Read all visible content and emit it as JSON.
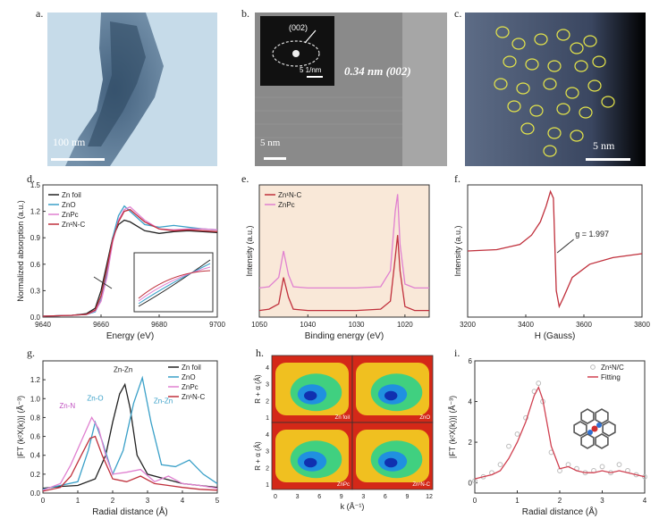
{
  "panels": {
    "a": {
      "label": "a.",
      "scalebar": "100 nm"
    },
    "b": {
      "label": "b.",
      "inset_label": "(002)",
      "inset_scale": "5 1/nm",
      "d_spacing": "0.34 nm (002)",
      "scalebar": "5 nm"
    },
    "c": {
      "label": "c.",
      "scalebar": "5 nm"
    },
    "d": {
      "label": "d."
    },
    "e": {
      "label": "e."
    },
    "f": {
      "label": "f."
    },
    "g": {
      "label": "g."
    },
    "h": {
      "label": "h."
    },
    "i": {
      "label": "i."
    }
  },
  "chart_data": [
    {
      "id": "d",
      "type": "line",
      "xlabel": "Energy (eV)",
      "ylabel": "Normalized absorption (a.u.)",
      "xlim": [
        9640,
        9700
      ],
      "ylim": [
        0,
        1.5
      ],
      "xticks": [
        "9640",
        "9660",
        "9680",
        "9700"
      ],
      "yticks": [
        "0.0",
        "0.3",
        "0.6",
        "0.9",
        "1.2",
        "1.5"
      ],
      "legend": "top-left",
      "series": [
        {
          "name": "Zn foil",
          "color": "#222222",
          "x": [
            9640,
            9650,
            9655,
            9658,
            9660,
            9662,
            9664,
            9666,
            9668,
            9670,
            9675,
            9680,
            9685,
            9690,
            9695,
            9700
          ],
          "y": [
            0.01,
            0.02,
            0.04,
            0.1,
            0.3,
            0.6,
            0.9,
            1.05,
            1.1,
            1.08,
            0.98,
            0.95,
            0.97,
            0.98,
            0.97,
            0.96
          ]
        },
        {
          "name": "ZnO",
          "color": "#3aa0c8",
          "x": [
            9640,
            9650,
            9655,
            9658,
            9660,
            9662,
            9664,
            9666,
            9668,
            9670,
            9675,
            9680,
            9685,
            9690,
            9695,
            9700
          ],
          "y": [
            0.01,
            0.02,
            0.03,
            0.06,
            0.2,
            0.5,
            0.9,
            1.15,
            1.26,
            1.2,
            1.05,
            1.02,
            1.04,
            1.02,
            1.0,
            0.99
          ]
        },
        {
          "name": "ZnPc",
          "color": "#e080d0",
          "x": [
            9640,
            9650,
            9655,
            9658,
            9660,
            9662,
            9664,
            9666,
            9668,
            9670,
            9675,
            9680,
            9685,
            9690,
            9695,
            9700
          ],
          "y": [
            0.01,
            0.02,
            0.03,
            0.07,
            0.18,
            0.45,
            0.85,
            1.1,
            1.22,
            1.25,
            1.1,
            1.0,
            0.99,
            1.0,
            1.0,
            0.99
          ]
        },
        {
          "name": "Zn¹N-C",
          "color": "#c0303c",
          "x": [
            9640,
            9650,
            9655,
            9658,
            9660,
            9662,
            9664,
            9666,
            9668,
            9670,
            9675,
            9680,
            9685,
            9690,
            9695,
            9700
          ],
          "y": [
            0.01,
            0.02,
            0.03,
            0.08,
            0.24,
            0.55,
            0.88,
            1.08,
            1.2,
            1.22,
            1.08,
            1.0,
            0.98,
            0.99,
            0.98,
            0.97
          ]
        }
      ]
    },
    {
      "id": "e",
      "type": "line",
      "xlabel": "Binding energy (eV)",
      "ylabel": "Intensity (a.u.)",
      "xlim": [
        1050,
        1015
      ],
      "ylim": [
        0,
        1
      ],
      "xticks": [
        "1050",
        "1040",
        "1030",
        "1020"
      ],
      "legend": "top-left",
      "series": [
        {
          "name": "Zn¹N-C",
          "color": "#c0303c",
          "x": [
            1050,
            1048,
            1046,
            1045,
            1044,
            1043,
            1040,
            1035,
            1030,
            1025,
            1023,
            1022,
            1021.5,
            1021,
            1020,
            1018,
            1015
          ],
          "y": [
            0.05,
            0.06,
            0.1,
            0.3,
            0.15,
            0.06,
            0.05,
            0.05,
            0.05,
            0.06,
            0.12,
            0.45,
            0.62,
            0.35,
            0.08,
            0.05,
            0.05
          ]
        },
        {
          "name": "ZnPc",
          "color": "#e080d0",
          "x": [
            1050,
            1048,
            1046,
            1045,
            1044,
            1043,
            1040,
            1035,
            1030,
            1025,
            1023,
            1022,
            1021.5,
            1021,
            1020,
            1018,
            1015
          ],
          "y": [
            0.22,
            0.23,
            0.3,
            0.5,
            0.32,
            0.23,
            0.22,
            0.22,
            0.22,
            0.23,
            0.35,
            0.8,
            0.93,
            0.55,
            0.25,
            0.22,
            0.22
          ]
        }
      ]
    },
    {
      "id": "f",
      "type": "line",
      "xlabel": "H (Gauss)",
      "ylabel": "Intensity (a.u.)",
      "xlim": [
        3200,
        3800
      ],
      "xticks": [
        "3200",
        "3400",
        "3600",
        "3800"
      ],
      "annotation": "g = 1.997",
      "series": [
        {
          "color": "#c0303c",
          "x": [
            3200,
            3300,
            3380,
            3420,
            3450,
            3470,
            3485,
            3495,
            3500,
            3505,
            3515,
            3530,
            3560,
            3620,
            3700,
            3800
          ],
          "y": [
            0.5,
            0.51,
            0.55,
            0.62,
            0.72,
            0.84,
            0.95,
            0.9,
            0.55,
            0.2,
            0.08,
            0.15,
            0.3,
            0.4,
            0.45,
            0.48
          ]
        }
      ]
    },
    {
      "id": "g",
      "type": "line",
      "xlabel": "Radial distance (Å)",
      "ylabel": "|FT (k²X(k))| (Å⁻³)",
      "xlim": [
        0,
        5
      ],
      "ylim": [
        0,
        1.4
      ],
      "xticks": [
        "0",
        "1",
        "2",
        "3",
        "4",
        "5"
      ],
      "yticks": [
        "0.0",
        "0.2",
        "0.4",
        "0.6",
        "0.8",
        "1.0",
        "1.2"
      ],
      "legend": "top-right",
      "annotations": [
        "Zn-Zn",
        "Zn-O",
        "Zn-N",
        "Zn-Zn"
      ],
      "series": [
        {
          "name": "Zn foil",
          "color": "#222222",
          "x": [
            0,
            0.5,
            1.0,
            1.5,
            1.8,
            2.0,
            2.2,
            2.35,
            2.5,
            2.7,
            3.0,
            3.5,
            4.0,
            4.5,
            5.0
          ],
          "y": [
            0.05,
            0.07,
            0.08,
            0.15,
            0.4,
            0.75,
            1.05,
            1.15,
            0.9,
            0.4,
            0.2,
            0.15,
            0.1,
            0.08,
            0.06
          ]
        },
        {
          "name": "ZnO",
          "color": "#3aa0c8",
          "x": [
            0,
            0.5,
            1.0,
            1.3,
            1.5,
            1.7,
            2.0,
            2.3,
            2.6,
            2.85,
            3.1,
            3.4,
            3.8,
            4.2,
            4.6,
            5.0
          ],
          "y": [
            0.04,
            0.08,
            0.12,
            0.45,
            0.75,
            0.55,
            0.2,
            0.45,
            0.95,
            1.22,
            0.75,
            0.3,
            0.28,
            0.35,
            0.2,
            0.1
          ]
        },
        {
          "name": "ZnPc",
          "color": "#e080d0",
          "x": [
            0,
            0.5,
            0.8,
            1.1,
            1.4,
            1.6,
            1.8,
            2.0,
            2.4,
            2.8,
            3.2,
            3.6,
            4.0,
            4.5,
            5.0
          ],
          "y": [
            0.03,
            0.1,
            0.3,
            0.55,
            0.8,
            0.68,
            0.4,
            0.2,
            0.22,
            0.25,
            0.12,
            0.18,
            0.1,
            0.08,
            0.05
          ]
        },
        {
          "name": "Zn¹N-C",
          "color": "#c0303c",
          "x": [
            0,
            0.5,
            0.8,
            1.1,
            1.35,
            1.5,
            1.7,
            2.0,
            2.4,
            2.8,
            3.2,
            3.6,
            4.0,
            4.5,
            5.0
          ],
          "y": [
            0.02,
            0.06,
            0.18,
            0.4,
            0.58,
            0.6,
            0.4,
            0.15,
            0.12,
            0.18,
            0.1,
            0.08,
            0.06,
            0.04,
            0.03
          ]
        }
      ]
    },
    {
      "id": "h",
      "type": "heatmap",
      "xlabel": "k (Å⁻¹)",
      "ylabel": "R + α (Å)",
      "subpanels": [
        "Zn foil",
        "ZnO",
        "ZnPc",
        "Zn¹N-C"
      ],
      "xticks": [
        "0",
        "3",
        "6",
        "9",
        "3",
        "6",
        "9",
        "12"
      ],
      "yticks": [
        "1",
        "2",
        "3",
        "4"
      ]
    },
    {
      "id": "i",
      "type": "line",
      "xlabel": "Radial distance (Å)",
      "ylabel": "|FT (k²X(k))| (Å⁻³)",
      "xlim": [
        0,
        4
      ],
      "ylim": [
        -0.5,
        6
      ],
      "xticks": [
        "0",
        "1",
        "2",
        "3",
        "4"
      ],
      "yticks": [
        "0",
        "2",
        "4",
        "6"
      ],
      "legend": "top-right",
      "series": [
        {
          "name": "Zn¹N/C",
          "color": "#bbbbbb",
          "style": "markers",
          "x": [
            0,
            0.2,
            0.4,
            0.6,
            0.8,
            1.0,
            1.2,
            1.4,
            1.5,
            1.6,
            1.8,
            2.0,
            2.2,
            2.4,
            2.6,
            2.8,
            3.0,
            3.2,
            3.4,
            3.6,
            3.8,
            4.0
          ],
          "y": [
            0.1,
            0.3,
            0.5,
            0.9,
            1.8,
            2.4,
            3.2,
            4.5,
            4.9,
            4.0,
            1.5,
            0.6,
            0.9,
            0.7,
            0.5,
            0.6,
            0.8,
            0.5,
            0.9,
            0.6,
            0.4,
            0.3
          ]
        },
        {
          "name": "Fitting",
          "color": "#d04050",
          "x": [
            0,
            0.2,
            0.4,
            0.6,
            0.8,
            1.0,
            1.2,
            1.4,
            1.5,
            1.6,
            1.8,
            2.0,
            2.2,
            2.4,
            2.6,
            2.8,
            3.0,
            3.2,
            3.4,
            3.6,
            3.8,
            4.0
          ],
          "y": [
            0.2,
            0.3,
            0.4,
            0.6,
            1.2,
            2.0,
            3.0,
            4.3,
            4.7,
            4.1,
            1.8,
            0.7,
            0.8,
            0.6,
            0.5,
            0.5,
            0.6,
            0.5,
            0.6,
            0.5,
            0.4,
            0.3
          ]
        }
      ]
    }
  ]
}
